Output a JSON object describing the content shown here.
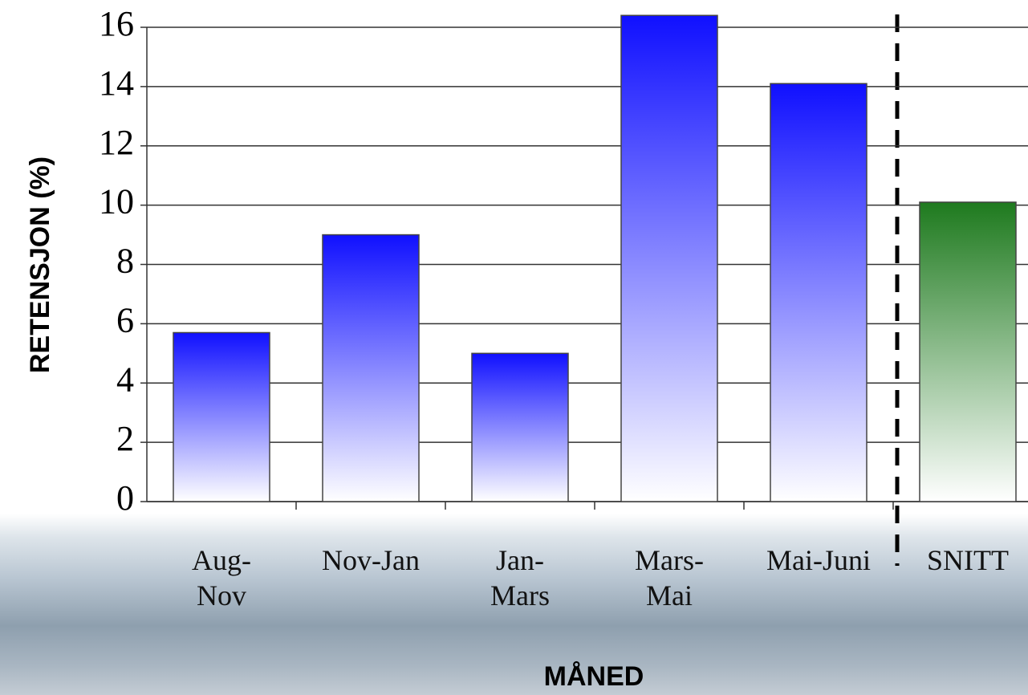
{
  "chart_data": {
    "type": "bar",
    "x_label": "MÅNED",
    "y_label": "RETENSJON (%)",
    "categories": [
      "Aug-\nNov",
      "Nov-Jan",
      "Jan-\nMars",
      "Mars-\nMai",
      "Mai-Juni",
      "SNITT"
    ],
    "values": [
      5.7,
      9.0,
      5.0,
      16.4,
      14.1,
      10.1
    ],
    "colors": [
      "#1010ff",
      "#1010ff",
      "#1010ff",
      "#1010ff",
      "#1010ff",
      "#1e7a1e"
    ],
    "ylim": [
      0,
      16
    ],
    "yticks": [
      0,
      2,
      4,
      6,
      8,
      10,
      12,
      14,
      16
    ],
    "grid": true
  }
}
